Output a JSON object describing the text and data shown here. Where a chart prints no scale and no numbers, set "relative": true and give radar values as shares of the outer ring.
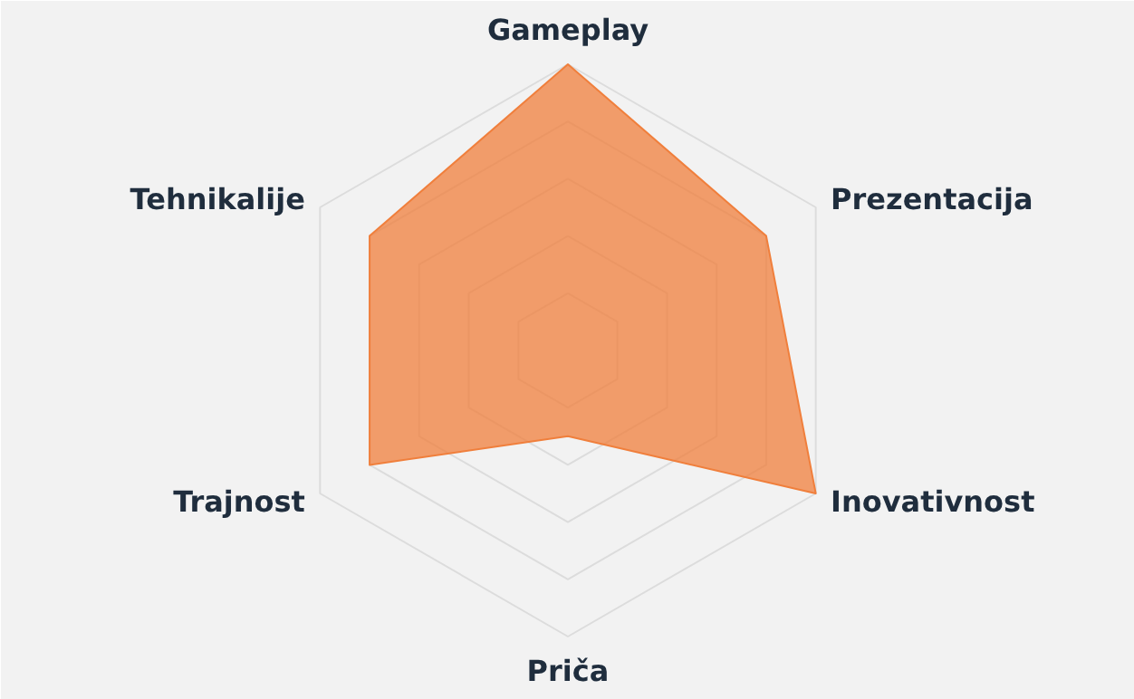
{
  "chart_data": {
    "type": "radar",
    "relative": true,
    "grid": true,
    "categories": [
      "Gameplay",
      "Prezentacija",
      "Inovativnost",
      "Priča",
      "Trajnost",
      "Tehnikalije"
    ],
    "series": [
      {
        "color": "#f07f3c",
        "values": [
          1.0,
          0.8,
          1.0,
          0.3,
          0.8,
          0.8
        ]
      }
    ]
  }
}
